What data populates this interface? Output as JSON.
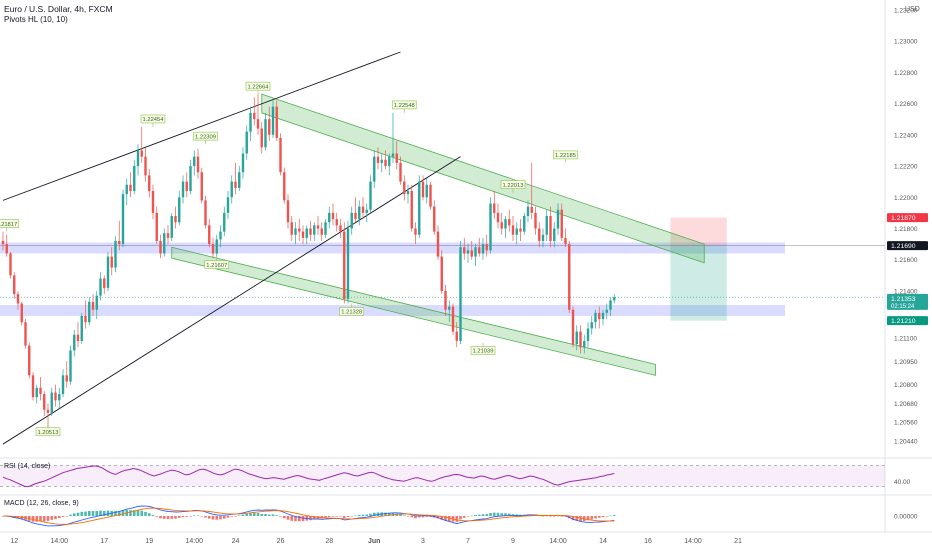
{
  "header": {
    "title": "Euro / U.S. Dollar, 4h, FXCM",
    "indicator": "Pivots HL (10, 10)",
    "currency": "USD"
  },
  "chart_data": {
    "type": "candlestick",
    "symbol": "EURUSD",
    "timeframe": "4h",
    "ylim": [
      1.2035,
      1.2325
    ],
    "y_ticks": [
      "1.23200",
      "1.23000",
      "1.22800",
      "1.22600",
      "1.22400",
      "1.22200",
      "1.22000",
      "1.21800",
      "1.21600",
      "1.21400",
      "1.21200",
      "1.21100",
      "1.20950",
      "1.20800",
      "1.20680",
      "1.20560",
      "1.20440"
    ],
    "x_ticks": [
      "12",
      "14:00",
      "17",
      "19",
      "14:00",
      "24",
      "26",
      "28",
      "Jun",
      "3",
      "7",
      "9",
      "14:00",
      "14",
      "16",
      "14:00",
      "21"
    ],
    "x_tick_bars": [
      3,
      15,
      27,
      39,
      51,
      62,
      74,
      87,
      99,
      112,
      124,
      136,
      148,
      160,
      172,
      184,
      196
    ],
    "bar_count": 200,
    "price_labels": [
      {
        "name": "stop",
        "text": "1.21870",
        "value": 1.2187,
        "color": "#f23645"
      },
      {
        "name": "entry",
        "text": "1.21690",
        "value": 1.2169,
        "color": "#131722"
      },
      {
        "name": "last-price",
        "text": "1.21353",
        "value": 1.21353,
        "color": "#26a69a",
        "countdown": "02:15:24"
      },
      {
        "name": "target",
        "text": "1.21210",
        "value": 1.2121,
        "color": "#089981"
      }
    ],
    "pivots": [
      {
        "label": "1.21817",
        "bar": 1,
        "value": 1.2178,
        "pos": "above"
      },
      {
        "label": "1.22454",
        "bar": 40,
        "value": 1.2245,
        "pos": "above"
      },
      {
        "label": "1.22309",
        "bar": 54,
        "value": 1.2234,
        "pos": "above"
      },
      {
        "label": "1.22664",
        "bar": 68,
        "value": 1.2266,
        "pos": "above"
      },
      {
        "label": "1.22548",
        "bar": 107,
        "value": 1.2254,
        "pos": "above"
      },
      {
        "label": "1.22013",
        "bar": 136,
        "value": 1.2203,
        "pos": "above"
      },
      {
        "label": "1.22185",
        "bar": 150,
        "value": 1.2222,
        "pos": "above"
      },
      {
        "label": "1.20513",
        "bar": 12,
        "value": 1.2055,
        "pos": "below"
      },
      {
        "label": "1.21607",
        "bar": 57,
        "value": 1.2162,
        "pos": "below"
      },
      {
        "label": "1.21328",
        "bar": 93,
        "value": 1.2132,
        "pos": "below"
      },
      {
        "label": "1.21039",
        "bar": 128,
        "value": 1.2107,
        "pos": "below"
      }
    ],
    "support_zones": [
      {
        "from": 1.2164,
        "to": 1.2171
      },
      {
        "from": 1.2124,
        "to": 1.2131
      }
    ],
    "channels": [
      {
        "name": "upper-channel",
        "p1": [
          69,
          1.2266
        ],
        "p2": [
          187,
          1.217
        ],
        "width": 0.0012
      },
      {
        "name": "lower-channel",
        "p1": [
          45,
          1.2168
        ],
        "p2": [
          174,
          1.2093
        ],
        "width": 0.0007
      }
    ],
    "trendlines": [
      {
        "name": "rising-line-top",
        "p1": [
          0,
          1.2198
        ],
        "p2": [
          106,
          1.2293
        ]
      },
      {
        "name": "rising-line-bottom",
        "p1": [
          0,
          1.2042
        ],
        "p2": [
          122,
          1.2226
        ]
      }
    ],
    "position_tool": {
      "start_bar": 178,
      "end_bar": 193,
      "entry": 1.2169,
      "stop": 1.2187,
      "target": 1.2121
    },
    "last_price_line": 1.2136,
    "candles_ohlc": [
      [
        1.2172,
        1.2178,
        1.2166,
        1.217
      ],
      [
        1.217,
        1.2176,
        1.2162,
        1.2164
      ],
      [
        1.2164,
        1.2165,
        1.2148,
        1.215
      ],
      [
        1.215,
        1.2152,
        1.2135,
        1.2138
      ],
      [
        1.2138,
        1.214,
        1.2128,
        1.2132
      ],
      [
        1.2132,
        1.2133,
        1.2118,
        1.212
      ],
      [
        1.212,
        1.2122,
        1.2103,
        1.2105
      ],
      [
        1.2105,
        1.2107,
        1.2084,
        1.2086
      ],
      [
        1.2086,
        1.2088,
        1.207,
        1.2072
      ],
      [
        1.2072,
        1.208,
        1.2068,
        1.2078
      ],
      [
        1.2078,
        1.2085,
        1.207,
        1.2074
      ],
      [
        1.2074,
        1.2076,
        1.206,
        1.2064
      ],
      [
        1.2064,
        1.2068,
        1.2051,
        1.2062
      ],
      [
        1.2062,
        1.2078,
        1.206,
        1.2075
      ],
      [
        1.2075,
        1.208,
        1.2066,
        1.207
      ],
      [
        1.207,
        1.2078,
        1.2065,
        1.2074
      ],
      [
        1.2074,
        1.209,
        1.2072,
        1.2086
      ],
      [
        1.2086,
        1.2095,
        1.2078,
        1.2082
      ],
      [
        1.2082,
        1.2105,
        1.208,
        1.2102
      ],
      [
        1.2102,
        1.2115,
        1.2098,
        1.2112
      ],
      [
        1.2112,
        1.212,
        1.2104,
        1.2108
      ],
      [
        1.2108,
        1.2126,
        1.2106,
        1.2124
      ],
      [
        1.2124,
        1.2134,
        1.2116,
        1.212
      ],
      [
        1.212,
        1.2136,
        1.2118,
        1.2133
      ],
      [
        1.2133,
        1.2138,
        1.2124,
        1.2128
      ],
      [
        1.2128,
        1.214,
        1.2122,
        1.2137
      ],
      [
        1.2137,
        1.2152,
        1.2134,
        1.2148
      ],
      [
        1.2148,
        1.215,
        1.2138,
        1.2142
      ],
      [
        1.2142,
        1.2165,
        1.214,
        1.2162
      ],
      [
        1.2162,
        1.2168,
        1.215,
        1.2155
      ],
      [
        1.2155,
        1.2175,
        1.2152,
        1.2172
      ],
      [
        1.2172,
        1.2185,
        1.2166,
        1.217
      ],
      [
        1.217,
        1.2205,
        1.2168,
        1.2202
      ],
      [
        1.2202,
        1.2212,
        1.2195,
        1.2208
      ],
      [
        1.2208,
        1.2216,
        1.22,
        1.2204
      ],
      [
        1.2204,
        1.2224,
        1.2202,
        1.222
      ],
      [
        1.222,
        1.2234,
        1.2214,
        1.223
      ],
      [
        1.223,
        1.2245,
        1.2222,
        1.2226
      ],
      [
        1.2226,
        1.2232,
        1.221,
        1.2214
      ],
      [
        1.2214,
        1.2218,
        1.22,
        1.2204
      ],
      [
        1.2204,
        1.2208,
        1.2186,
        1.219
      ],
      [
        1.219,
        1.2194,
        1.217,
        1.2172
      ],
      [
        1.2172,
        1.2176,
        1.2161,
        1.2164
      ],
      [
        1.2164,
        1.218,
        1.2162,
        1.2177
      ],
      [
        1.2177,
        1.2182,
        1.217,
        1.2174
      ],
      [
        1.2174,
        1.219,
        1.2172,
        1.2188
      ],
      [
        1.2188,
        1.2194,
        1.218,
        1.2184
      ],
      [
        1.2184,
        1.2204,
        1.2182,
        1.22
      ],
      [
        1.22,
        1.2214,
        1.2196,
        1.221
      ],
      [
        1.221,
        1.2216,
        1.22,
        1.2204
      ],
      [
        1.2204,
        1.2224,
        1.2202,
        1.222
      ],
      [
        1.222,
        1.223,
        1.2214,
        1.2226
      ],
      [
        1.2226,
        1.2231,
        1.2212,
        1.2216
      ],
      [
        1.2216,
        1.2219,
        1.2196,
        1.2198
      ],
      [
        1.2198,
        1.2201,
        1.218,
        1.2182
      ],
      [
        1.2182,
        1.2186,
        1.2168,
        1.217
      ],
      [
        1.217,
        1.2174,
        1.2161,
        1.2164
      ],
      [
        1.2164,
        1.2176,
        1.2162,
        1.2173
      ],
      [
        1.2173,
        1.2182,
        1.2168,
        1.2178
      ],
      [
        1.2178,
        1.2194,
        1.2175,
        1.219
      ],
      [
        1.219,
        1.2204,
        1.2186,
        1.22
      ],
      [
        1.22,
        1.2214,
        1.2196,
        1.221
      ],
      [
        1.221,
        1.2222,
        1.2202,
        1.2206
      ],
      [
        1.2206,
        1.222,
        1.2204,
        1.2216
      ],
      [
        1.2216,
        1.2232,
        1.2212,
        1.2228
      ],
      [
        1.2228,
        1.2246,
        1.2224,
        1.2242
      ],
      [
        1.2242,
        1.2258,
        1.2236,
        1.2254
      ],
      [
        1.2254,
        1.2264,
        1.2246,
        1.225
      ],
      [
        1.225,
        1.2266,
        1.224,
        1.2244
      ],
      [
        1.2244,
        1.2248,
        1.2228,
        1.2232
      ],
      [
        1.2232,
        1.2254,
        1.223,
        1.225
      ],
      [
        1.225,
        1.2258,
        1.2236,
        1.224
      ],
      [
        1.224,
        1.2262,
        1.2238,
        1.2258
      ],
      [
        1.2258,
        1.2262,
        1.2236,
        1.2238
      ],
      [
        1.2238,
        1.2241,
        1.2214,
        1.2216
      ],
      [
        1.2216,
        1.2219,
        1.2196,
        1.2198
      ],
      [
        1.2198,
        1.2202,
        1.218,
        1.2184
      ],
      [
        1.2184,
        1.2188,
        1.2172,
        1.2176
      ],
      [
        1.2176,
        1.2184,
        1.217,
        1.218
      ],
      [
        1.218,
        1.2186,
        1.2172,
        1.2178
      ],
      [
        1.2178,
        1.2182,
        1.217,
        1.2174
      ],
      [
        1.2174,
        1.2182,
        1.217,
        1.218
      ],
      [
        1.218,
        1.2185,
        1.2172,
        1.2176
      ],
      [
        1.2176,
        1.2184,
        1.2172,
        1.2182
      ],
      [
        1.2182,
        1.2188,
        1.2176,
        1.218
      ],
      [
        1.218,
        1.2184,
        1.2172,
        1.2176
      ],
      [
        1.2176,
        1.2186,
        1.2174,
        1.2184
      ],
      [
        1.2184,
        1.2194,
        1.218,
        1.219
      ],
      [
        1.219,
        1.2196,
        1.2182,
        1.2186
      ],
      [
        1.2186,
        1.219,
        1.2178,
        1.2182
      ],
      [
        1.2182,
        1.2186,
        1.2174,
        1.2178
      ],
      [
        1.2178,
        1.2184,
        1.2132,
        1.2135
      ],
      [
        1.2135,
        1.2185,
        1.2132,
        1.218
      ],
      [
        1.218,
        1.2194,
        1.2176,
        1.219
      ],
      [
        1.219,
        1.22,
        1.2184,
        1.2186
      ],
      [
        1.2186,
        1.2198,
        1.2182,
        1.2194
      ],
      [
        1.2194,
        1.22,
        1.2186,
        1.219
      ],
      [
        1.219,
        1.2196,
        1.2184,
        1.2192
      ],
      [
        1.2192,
        1.2214,
        1.219,
        1.221
      ],
      [
        1.221,
        1.223,
        1.2206,
        1.2226
      ],
      [
        1.2226,
        1.2232,
        1.2218,
        1.2222
      ],
      [
        1.2222,
        1.2228,
        1.2216,
        1.2224
      ],
      [
        1.2224,
        1.223,
        1.2218,
        1.222
      ],
      [
        1.222,
        1.2228,
        1.2214,
        1.2226
      ],
      [
        1.2226,
        1.2254,
        1.2222,
        1.2228
      ],
      [
        1.2228,
        1.2236,
        1.2218,
        1.2222
      ],
      [
        1.2222,
        1.2226,
        1.2208,
        1.221
      ],
      [
        1.221,
        1.2214,
        1.2198,
        1.2202
      ],
      [
        1.2202,
        1.2208,
        1.2196,
        1.2204
      ],
      [
        1.2204,
        1.2208,
        1.2178,
        1.218
      ],
      [
        1.218,
        1.2184,
        1.217,
        1.2176
      ],
      [
        1.2176,
        1.2214,
        1.2174,
        1.221
      ],
      [
        1.221,
        1.2214,
        1.2198,
        1.22
      ],
      [
        1.22,
        1.2212,
        1.2196,
        1.2208
      ],
      [
        1.2208,
        1.221,
        1.2192,
        1.2194
      ],
      [
        1.2194,
        1.2198,
        1.2176,
        1.2178
      ],
      [
        1.2178,
        1.2182,
        1.216,
        1.2162
      ],
      [
        1.2162,
        1.2166,
        1.2138,
        1.214
      ],
      [
        1.214,
        1.2144,
        1.2124,
        1.2128
      ],
      [
        1.2128,
        1.2134,
        1.212,
        1.213
      ],
      [
        1.213,
        1.2132,
        1.2112,
        1.2114
      ],
      [
        1.2114,
        1.212,
        1.2104,
        1.2108
      ],
      [
        1.2108,
        1.2172,
        1.2106,
        1.2168
      ],
      [
        1.2168,
        1.2174,
        1.216,
        1.2164
      ],
      [
        1.2164,
        1.217,
        1.2158,
        1.2166
      ],
      [
        1.2166,
        1.2172,
        1.216,
        1.2162
      ],
      [
        1.2162,
        1.217,
        1.2156,
        1.2168
      ],
      [
        1.2168,
        1.2174,
        1.2162,
        1.2164
      ],
      [
        1.2164,
        1.2174,
        1.216,
        1.217
      ],
      [
        1.217,
        1.2176,
        1.2162,
        1.2166
      ],
      [
        1.2166,
        1.22,
        1.2164,
        1.2196
      ],
      [
        1.2196,
        1.2204,
        1.2186,
        1.219
      ],
      [
        1.219,
        1.2196,
        1.218,
        1.2184
      ],
      [
        1.2184,
        1.219,
        1.2176,
        1.218
      ],
      [
        1.218,
        1.2188,
        1.2174,
        1.2186
      ],
      [
        1.2186,
        1.2192,
        1.2178,
        1.2182
      ],
      [
        1.2182,
        1.2188,
        1.2172,
        1.2176
      ],
      [
        1.2176,
        1.2184,
        1.217,
        1.218
      ],
      [
        1.218,
        1.2186,
        1.2172,
        1.2178
      ],
      [
        1.2178,
        1.219,
        1.2176,
        1.2188
      ],
      [
        1.2188,
        1.2198,
        1.2184,
        1.2194
      ],
      [
        1.2194,
        1.2222,
        1.2186,
        1.219
      ],
      [
        1.219,
        1.2194,
        1.2176,
        1.218
      ],
      [
        1.218,
        1.2184,
        1.2168,
        1.2172
      ],
      [
        1.2172,
        1.218,
        1.2168,
        1.2176
      ],
      [
        1.2176,
        1.2192,
        1.2172,
        1.2188
      ],
      [
        1.2188,
        1.2194,
        1.2168,
        1.2172
      ],
      [
        1.2172,
        1.2184,
        1.2168,
        1.218
      ],
      [
        1.218,
        1.2196,
        1.2176,
        1.2192
      ],
      [
        1.2192,
        1.2196,
        1.2172,
        1.2174
      ],
      [
        1.2174,
        1.218,
        1.2168,
        1.217
      ],
      [
        1.217,
        1.2172,
        1.2126,
        1.2128
      ],
      [
        1.2128,
        1.213,
        1.2104,
        1.2106
      ],
      [
        1.2106,
        1.2118,
        1.2102,
        1.2114
      ],
      [
        1.2114,
        1.2118,
        1.21,
        1.2104
      ],
      [
        1.2104,
        1.2112,
        1.21,
        1.2108
      ],
      [
        1.2108,
        1.212,
        1.2104,
        1.2116
      ],
      [
        1.2116,
        1.2124,
        1.2112,
        1.212
      ],
      [
        1.212,
        1.2128,
        1.2116,
        1.2126
      ],
      [
        1.2126,
        1.213,
        1.2116,
        1.2122
      ],
      [
        1.2122,
        1.2128,
        1.2118,
        1.2126
      ],
      [
        1.2126,
        1.2132,
        1.2122,
        1.2128
      ],
      [
        1.2128,
        1.2136,
        1.2124,
        1.2134
      ],
      [
        1.2134,
        1.2138,
        1.2132,
        1.2136
      ]
    ],
    "rsi": {
      "label": "RSI (14, close)",
      "tick": "40.00",
      "range": [
        20,
        80
      ],
      "band": [
        30,
        70
      ],
      "color": "#9c27b0",
      "values": [
        48,
        45,
        43,
        40,
        37,
        34,
        31,
        30,
        32,
        35,
        37,
        39,
        41,
        44,
        47,
        50,
        53,
        56,
        58,
        60,
        62,
        64,
        65,
        66,
        67,
        68,
        69,
        68,
        66,
        62,
        58,
        55,
        53,
        56,
        59,
        61,
        62,
        64,
        63,
        61,
        58,
        55,
        52,
        50,
        52,
        54,
        57,
        59,
        61,
        60,
        58,
        55,
        52,
        53,
        56,
        59,
        62,
        63,
        61,
        58,
        55,
        53,
        52,
        54,
        57,
        60,
        63,
        62,
        60,
        57,
        54,
        52,
        50,
        48,
        46,
        45,
        46,
        47,
        46,
        45,
        44,
        46,
        48,
        50,
        51,
        49,
        47,
        45,
        44,
        43,
        42,
        44,
        46,
        48,
        50,
        52,
        54,
        56,
        55,
        53,
        51,
        50,
        52,
        54,
        56,
        57,
        55,
        52,
        49,
        47,
        45,
        43,
        42,
        41,
        40,
        42,
        44,
        46,
        47,
        45,
        43,
        41,
        40,
        42,
        45,
        47,
        49,
        50,
        52,
        53,
        52,
        50,
        48,
        47,
        46,
        48,
        50,
        49,
        47,
        45,
        44,
        46,
        48,
        50,
        51,
        49,
        47,
        45,
        46,
        48,
        50,
        49,
        47,
        45,
        43,
        40,
        37,
        34,
        33,
        35,
        37,
        39,
        40,
        41,
        42,
        43,
        44,
        45,
        46,
        47,
        49,
        50,
        52,
        53,
        55
      ]
    },
    "macd": {
      "label": "MACD (12, 26, close, 9)",
      "tick": "0.00000",
      "colors": {
        "macd": "#2962ff",
        "signal": "#ff6d00",
        "hist_up": "#26a69a",
        "hist_down": "#ef5350"
      }
    }
  }
}
